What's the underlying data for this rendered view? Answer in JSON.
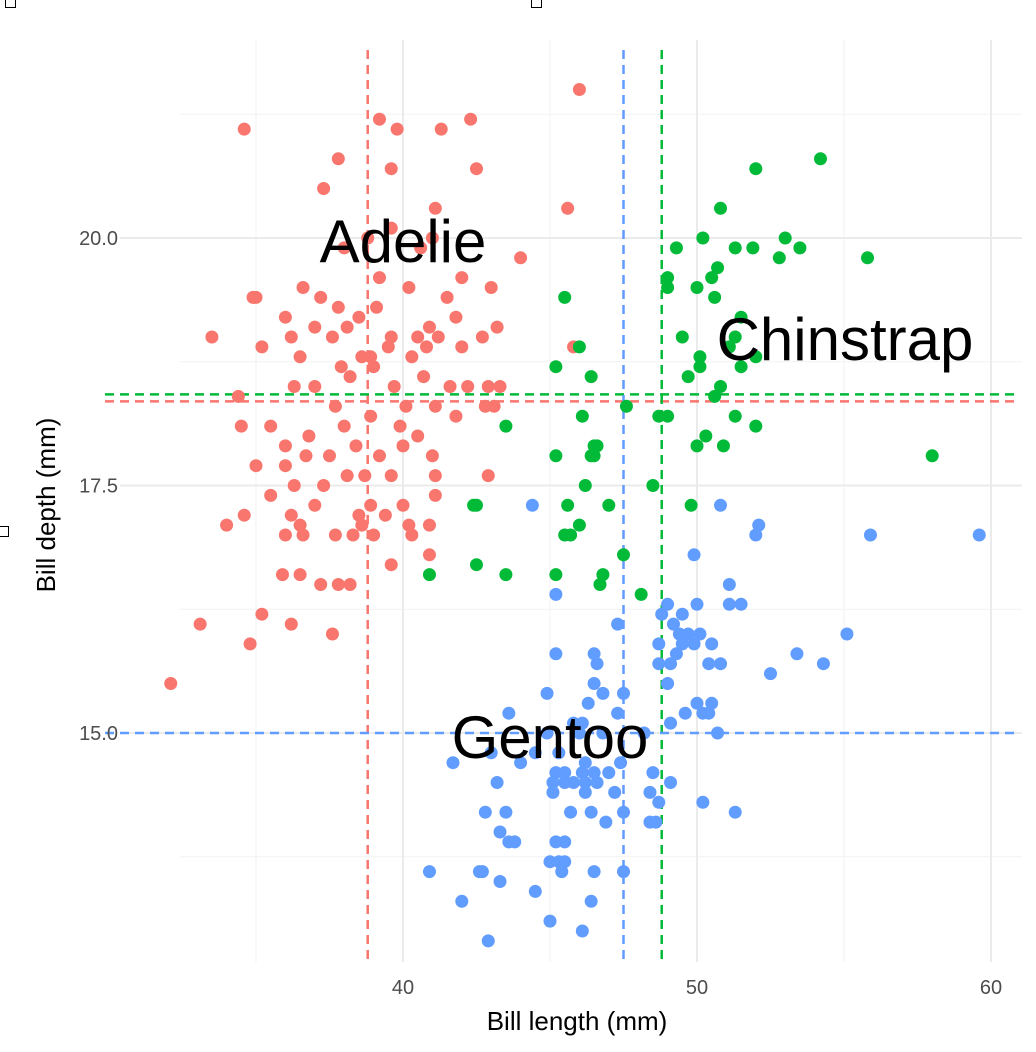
{
  "chart_data": {
    "type": "scatter",
    "title": "",
    "xlabel": "Bill length (mm)",
    "ylabel": "Bill depth (mm)",
    "xlim": [
      32.1,
      61.0
    ],
    "ylim": [
      12.8,
      21.8
    ],
    "x_ticks": [
      40,
      50,
      60
    ],
    "y_ticks": [
      15.0,
      17.5,
      20.0
    ],
    "x_tick_labels": [
      "40",
      "50",
      "60"
    ],
    "y_tick_labels": [
      "15.0",
      "17.5",
      "20.0"
    ],
    "grid": true,
    "legend": "none",
    "series": [
      {
        "name": "Adelie",
        "color": "#F8766D",
        "mean_x": 38.8,
        "mean_y": 18.35,
        "points": [
          [
            34.6,
            21.1
          ],
          [
            39.2,
            21.2
          ],
          [
            39.8,
            21.1
          ],
          [
            41.3,
            21.1
          ],
          [
            42.3,
            21.2
          ],
          [
            37.8,
            20.8
          ],
          [
            41.1,
            20.3
          ],
          [
            39.6,
            20.7
          ],
          [
            42.5,
            20.7
          ],
          [
            37.3,
            20.5
          ],
          [
            38.8,
            20.0
          ],
          [
            39.6,
            20.1
          ],
          [
            40.6,
            19.9
          ],
          [
            41.0,
            20.0
          ],
          [
            38.0,
            19.9
          ],
          [
            39.2,
            19.6
          ],
          [
            40.2,
            19.5
          ],
          [
            41.5,
            19.4
          ],
          [
            42.0,
            19.6
          ],
          [
            43.0,
            19.5
          ],
          [
            44.0,
            19.8
          ],
          [
            35.0,
            19.4
          ],
          [
            36.6,
            19.5
          ],
          [
            37.2,
            19.4
          ],
          [
            37.8,
            19.3
          ],
          [
            38.5,
            19.2
          ],
          [
            39.1,
            19.3
          ],
          [
            40.5,
            19.0
          ],
          [
            41.8,
            19.2
          ],
          [
            42.7,
            19.0
          ],
          [
            43.2,
            19.1
          ],
          [
            36.0,
            19.2
          ],
          [
            33.5,
            19.0
          ],
          [
            35.2,
            18.9
          ],
          [
            36.2,
            19.0
          ],
          [
            37.0,
            19.1
          ],
          [
            37.6,
            19.0
          ],
          [
            38.1,
            19.1
          ],
          [
            39.6,
            19.0
          ],
          [
            40.9,
            19.1
          ],
          [
            41.2,
            19.0
          ],
          [
            36.5,
            18.8
          ],
          [
            37.9,
            18.7
          ],
          [
            38.6,
            18.8
          ],
          [
            39.5,
            18.9
          ],
          [
            40.3,
            18.8
          ],
          [
            40.8,
            18.9
          ],
          [
            39.0,
            18.7
          ],
          [
            37.0,
            18.5
          ],
          [
            36.3,
            18.5
          ],
          [
            38.2,
            18.6
          ],
          [
            39.7,
            18.5
          ],
          [
            40.7,
            18.6
          ],
          [
            41.6,
            18.5
          ],
          [
            42.2,
            18.5
          ],
          [
            42.9,
            18.5
          ],
          [
            43.1,
            18.3
          ],
          [
            43.3,
            18.5
          ],
          [
            34.4,
            18.4
          ],
          [
            35.5,
            18.1
          ],
          [
            36.8,
            18.0
          ],
          [
            37.7,
            18.3
          ],
          [
            38.0,
            18.1
          ],
          [
            38.9,
            18.2
          ],
          [
            39.9,
            18.1
          ],
          [
            40.1,
            18.3
          ],
          [
            41.1,
            18.3
          ],
          [
            41.8,
            18.2
          ],
          [
            42.8,
            18.3
          ],
          [
            34.5,
            18.1
          ],
          [
            36.0,
            17.9
          ],
          [
            36.7,
            17.8
          ],
          [
            37.5,
            17.8
          ],
          [
            38.4,
            17.9
          ],
          [
            39.2,
            17.8
          ],
          [
            40.0,
            17.9
          ],
          [
            40.5,
            18.0
          ],
          [
            41.0,
            17.8
          ],
          [
            36.0,
            17.7
          ],
          [
            37.3,
            17.5
          ],
          [
            38.1,
            17.6
          ],
          [
            38.7,
            17.6
          ],
          [
            39.6,
            17.6
          ],
          [
            41.1,
            17.6
          ],
          [
            42.9,
            17.6
          ],
          [
            35.0,
            17.7
          ],
          [
            36.3,
            17.5
          ],
          [
            38.9,
            17.3
          ],
          [
            40.0,
            17.3
          ],
          [
            41.1,
            17.4
          ],
          [
            35.5,
            17.4
          ],
          [
            36.2,
            17.2
          ],
          [
            36.5,
            17.1
          ],
          [
            37.0,
            17.3
          ],
          [
            38.5,
            17.2
          ],
          [
            38.6,
            17.1
          ],
          [
            39.4,
            17.2
          ],
          [
            40.2,
            17.1
          ],
          [
            40.9,
            17.1
          ],
          [
            34.0,
            17.1
          ],
          [
            34.6,
            17.2
          ],
          [
            36.0,
            17.0
          ],
          [
            36.6,
            17.0
          ],
          [
            37.7,
            17.0
          ],
          [
            38.3,
            17.0
          ],
          [
            39.0,
            17.0
          ],
          [
            40.3,
            17.0
          ],
          [
            35.9,
            16.6
          ],
          [
            36.5,
            16.6
          ],
          [
            37.2,
            16.5
          ],
          [
            37.8,
            16.5
          ],
          [
            38.2,
            16.5
          ],
          [
            39.6,
            16.7
          ],
          [
            40.9,
            16.8
          ],
          [
            35.2,
            16.2
          ],
          [
            33.1,
            16.1
          ],
          [
            36.2,
            16.1
          ],
          [
            37.6,
            16.0
          ],
          [
            34.8,
            15.9
          ],
          [
            32.1,
            15.5
          ],
          [
            34.9,
            19.4
          ],
          [
            38.9,
            18.8
          ],
          [
            42.0,
            18.9
          ],
          [
            45.6,
            20.3
          ],
          [
            45.8,
            18.9
          ],
          [
            46.0,
            21.5
          ]
        ]
      },
      {
        "name": "Chinstrap",
        "color": "#00BA38",
        "mean_x": 48.8,
        "mean_y": 18.42,
        "points": [
          [
            54.2,
            20.8
          ],
          [
            52.0,
            20.7
          ],
          [
            50.8,
            20.3
          ],
          [
            51.9,
            19.9
          ],
          [
            50.2,
            20.0
          ],
          [
            53.0,
            20.0
          ],
          [
            49.3,
            19.9
          ],
          [
            51.3,
            19.9
          ],
          [
            53.5,
            19.9
          ],
          [
            52.8,
            19.8
          ],
          [
            55.8,
            19.8
          ],
          [
            50.7,
            19.7
          ],
          [
            49.0,
            19.6
          ],
          [
            50.5,
            19.6
          ],
          [
            49.0,
            19.5
          ],
          [
            50.0,
            19.5
          ],
          [
            50.6,
            19.4
          ],
          [
            45.5,
            19.4
          ],
          [
            51.5,
            19.2
          ],
          [
            51.3,
            19.0
          ],
          [
            49.5,
            19.0
          ],
          [
            51.1,
            18.9
          ],
          [
            46.0,
            18.9
          ],
          [
            50.1,
            18.8
          ],
          [
            52.0,
            18.8
          ],
          [
            45.2,
            18.7
          ],
          [
            50.1,
            18.7
          ],
          [
            51.5,
            18.7
          ],
          [
            49.7,
            18.6
          ],
          [
            46.4,
            18.6
          ],
          [
            50.8,
            18.5
          ],
          [
            50.6,
            18.4
          ],
          [
            47.6,
            18.3
          ],
          [
            48.7,
            18.2
          ],
          [
            46.1,
            18.2
          ],
          [
            49.0,
            18.2
          ],
          [
            51.3,
            18.2
          ],
          [
            52.0,
            18.1
          ],
          [
            43.5,
            18.1
          ],
          [
            50.3,
            18.0
          ],
          [
            46.5,
            17.9
          ],
          [
            46.6,
            17.9
          ],
          [
            50.0,
            17.9
          ],
          [
            50.9,
            17.9
          ],
          [
            46.4,
            17.8
          ],
          [
            46.5,
            17.8
          ],
          [
            45.2,
            17.8
          ],
          [
            58.0,
            17.8
          ],
          [
            48.5,
            17.5
          ],
          [
            46.2,
            17.5
          ],
          [
            42.4,
            17.3
          ],
          [
            42.5,
            17.3
          ],
          [
            45.6,
            17.3
          ],
          [
            47.0,
            17.3
          ],
          [
            49.8,
            17.3
          ],
          [
            46.0,
            17.1
          ],
          [
            45.5,
            17.0
          ],
          [
            45.7,
            17.0
          ],
          [
            47.5,
            16.8
          ],
          [
            42.5,
            16.7
          ],
          [
            40.9,
            16.6
          ],
          [
            43.5,
            16.6
          ],
          [
            45.2,
            16.6
          ],
          [
            46.8,
            16.6
          ],
          [
            46.7,
            16.5
          ],
          [
            48.1,
            16.4
          ]
        ]
      },
      {
        "name": "Gentoo",
        "color": "#619CFF",
        "mean_x": 47.5,
        "mean_y": 15.0,
        "points": [
          [
            44.4,
            17.3
          ],
          [
            50.8,
            17.3
          ],
          [
            52.1,
            17.1
          ],
          [
            52.0,
            17.0
          ],
          [
            55.9,
            17.0
          ],
          [
            59.6,
            17.0
          ],
          [
            49.9,
            16.8
          ],
          [
            51.1,
            16.5
          ],
          [
            45.2,
            16.4
          ],
          [
            49.0,
            16.3
          ],
          [
            51.1,
            16.3
          ],
          [
            51.5,
            16.3
          ],
          [
            50.0,
            16.3
          ],
          [
            48.8,
            16.2
          ],
          [
            49.5,
            16.2
          ],
          [
            49.2,
            16.1
          ],
          [
            47.3,
            16.1
          ],
          [
            49.4,
            16.0
          ],
          [
            49.7,
            16.0
          ],
          [
            50.1,
            16.0
          ],
          [
            55.1,
            16.0
          ],
          [
            48.7,
            15.9
          ],
          [
            49.5,
            15.9
          ],
          [
            49.9,
            15.9
          ],
          [
            50.5,
            15.9
          ],
          [
            53.4,
            15.8
          ],
          [
            45.2,
            15.8
          ],
          [
            46.5,
            15.8
          ],
          [
            49.3,
            15.8
          ],
          [
            49.1,
            15.7
          ],
          [
            50.4,
            15.7
          ],
          [
            50.8,
            15.7
          ],
          [
            54.3,
            15.7
          ],
          [
            46.6,
            15.7
          ],
          [
            48.7,
            15.7
          ],
          [
            52.5,
            15.6
          ],
          [
            46.5,
            15.5
          ],
          [
            49.0,
            15.5
          ],
          [
            47.5,
            15.4
          ],
          [
            44.9,
            15.4
          ],
          [
            46.8,
            15.4
          ],
          [
            50.0,
            15.3
          ],
          [
            50.5,
            15.3
          ],
          [
            46.3,
            15.3
          ],
          [
            49.6,
            15.2
          ],
          [
            43.6,
            15.2
          ],
          [
            47.3,
            15.2
          ],
          [
            50.2,
            15.2
          ],
          [
            46.1,
            15.1
          ],
          [
            50.4,
            15.2
          ],
          [
            45.8,
            15.1
          ],
          [
            49.1,
            15.1
          ],
          [
            46.0,
            15.0
          ],
          [
            46.8,
            15.0
          ],
          [
            44.9,
            15.0
          ],
          [
            50.7,
            15.0
          ],
          [
            48.2,
            15.0
          ],
          [
            45.3,
            14.8
          ],
          [
            46.2,
            14.7
          ],
          [
            47.4,
            14.7
          ],
          [
            43.0,
            14.8
          ],
          [
            44.5,
            14.8
          ],
          [
            41.7,
            14.7
          ],
          [
            44.0,
            14.7
          ],
          [
            45.2,
            14.6
          ],
          [
            45.5,
            14.6
          ],
          [
            46.1,
            14.6
          ],
          [
            46.5,
            14.6
          ],
          [
            47.0,
            14.6
          ],
          [
            48.5,
            14.6
          ],
          [
            45.8,
            14.5
          ],
          [
            43.2,
            14.5
          ],
          [
            45.1,
            14.5
          ],
          [
            45.5,
            14.5
          ],
          [
            46.2,
            14.5
          ],
          [
            46.6,
            14.5
          ],
          [
            49.1,
            14.5
          ],
          [
            45.1,
            14.4
          ],
          [
            46.2,
            14.4
          ],
          [
            47.2,
            14.4
          ],
          [
            48.7,
            14.3
          ],
          [
            50.2,
            14.3
          ],
          [
            48.4,
            14.4
          ],
          [
            42.8,
            14.2
          ],
          [
            43.5,
            14.2
          ],
          [
            45.7,
            14.2
          ],
          [
            46.4,
            14.2
          ],
          [
            47.5,
            14.2
          ],
          [
            51.3,
            14.2
          ],
          [
            48.4,
            14.1
          ],
          [
            48.6,
            14.1
          ],
          [
            46.9,
            14.1
          ],
          [
            43.3,
            14.0
          ],
          [
            45.2,
            13.9
          ],
          [
            45.5,
            13.9
          ],
          [
            43.6,
            13.9
          ],
          [
            43.8,
            13.9
          ],
          [
            45.3,
            13.7
          ],
          [
            45.5,
            13.7
          ],
          [
            45.0,
            13.7
          ],
          [
            47.5,
            13.6
          ],
          [
            46.5,
            13.6
          ],
          [
            40.9,
            13.6
          ],
          [
            42.7,
            13.6
          ],
          [
            42.6,
            13.6
          ],
          [
            45.4,
            13.6
          ],
          [
            43.3,
            13.5
          ],
          [
            44.5,
            13.4
          ],
          [
            42.0,
            13.3
          ],
          [
            46.4,
            13.3
          ],
          [
            45.0,
            13.1
          ],
          [
            46.1,
            13.0
          ],
          [
            42.9,
            12.9
          ]
        ]
      }
    ],
    "annotations": [
      "Adelie",
      "Chinstrap",
      "Gentoo"
    ]
  }
}
